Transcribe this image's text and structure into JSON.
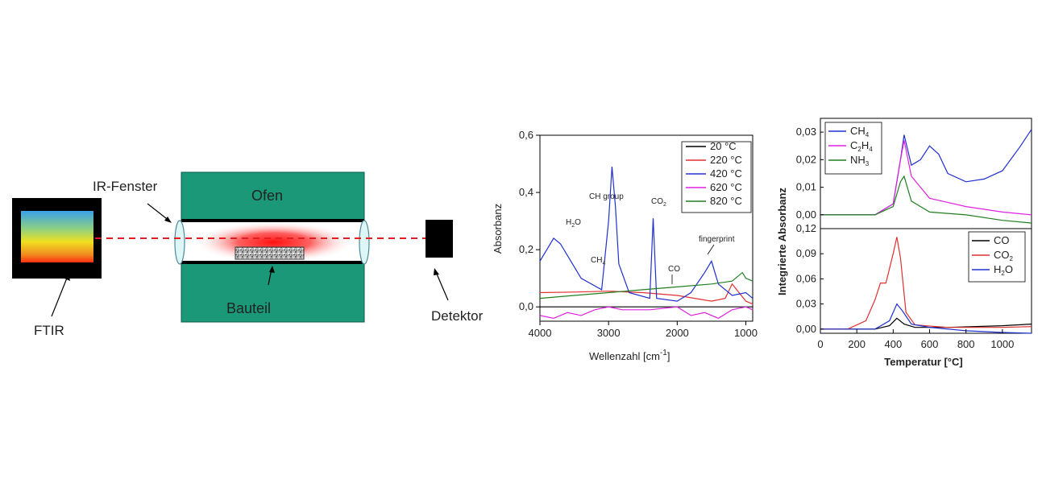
{
  "setup": {
    "ftir_label": "FTIR",
    "window_label": "IR-Fenster",
    "oven_label": "Ofen",
    "part_label": "Bauteil",
    "detector_label": "Detektor",
    "colors": {
      "oven": "#1a9878",
      "beam": "#e02020",
      "ftir_box": "#000000"
    }
  },
  "chart_data": [
    {
      "type": "line",
      "title": "",
      "xlabel": "Wellenzahl [cm",
      "xlabel_sup": "-1",
      "xlabel_end": "]",
      "ylabel": "Absorbanz",
      "xlim": [
        4000,
        900
      ],
      "ylim": [
        -0.05,
        0.6
      ],
      "x_ticks": [
        "4000",
        "3000",
        "2000",
        "1000"
      ],
      "y_ticks": [
        "0,0",
        "0,2",
        "0,4",
        "0,6"
      ],
      "legend": [
        {
          "name": "20 °C",
          "color": "#000000"
        },
        {
          "name": "220 °C",
          "color": "#e03030"
        },
        {
          "name": "420 °C",
          "color": "#2030d0"
        },
        {
          "name": "620 °C",
          "color": "#e020e0"
        },
        {
          "name": "820 °C",
          "color": "#208020"
        }
      ],
      "annotations": {
        "h2o": "H",
        "h2o_sub": "2",
        "h2o_end": "O",
        "ch4": "CH",
        "ch4_sub": "4",
        "ch_group": "CH group",
        "co2": "CO",
        "co2_sub": "2",
        "co": "CO",
        "fingerprint": "fingerprint"
      },
      "series": [
        {
          "name": "20 °C",
          "x": [
            4000,
            3000,
            2000,
            1000,
            900
          ],
          "y": [
            0.0,
            0.0,
            0.0,
            0.0,
            0.0
          ]
        },
        {
          "name": "220 °C",
          "x": [
            4000,
            3500,
            3000,
            2500,
            2000,
            1500,
            1300,
            1200,
            1000,
            900
          ],
          "y": [
            0.05,
            0.052,
            0.055,
            0.05,
            0.04,
            0.02,
            0.03,
            0.08,
            0.02,
            0.01
          ]
        },
        {
          "name": "420 °C",
          "x": [
            4000,
            3900,
            3800,
            3700,
            3600,
            3400,
            3100,
            3000,
            2950,
            2900,
            2850,
            2700,
            2400,
            2350,
            2300,
            2000,
            1800,
            1600,
            1500,
            1400,
            1200,
            1000,
            900
          ],
          "y": [
            0.16,
            0.2,
            0.24,
            0.22,
            0.18,
            0.1,
            0.06,
            0.3,
            0.49,
            0.35,
            0.15,
            0.05,
            0.03,
            0.31,
            0.03,
            0.02,
            0.05,
            0.12,
            0.16,
            0.08,
            0.04,
            0.05,
            0.03
          ]
        },
        {
          "name": "620 °C",
          "x": [
            4000,
            3800,
            3600,
            3400,
            3200,
            3000,
            2800,
            2400,
            2000,
            1800,
            1600,
            1400,
            1200,
            1000,
            900
          ],
          "y": [
            -0.03,
            -0.04,
            -0.02,
            -0.03,
            -0.01,
            0.0,
            -0.01,
            -0.01,
            0.0,
            -0.03,
            -0.02,
            -0.04,
            -0.01,
            0.0,
            -0.01
          ]
        },
        {
          "name": "820 °C",
          "x": [
            4000,
            3500,
            3000,
            2500,
            2000,
            1500,
            1200,
            1050,
            1000,
            900
          ],
          "y": [
            0.03,
            0.04,
            0.05,
            0.06,
            0.07,
            0.08,
            0.09,
            0.12,
            0.1,
            0.09
          ]
        }
      ]
    },
    {
      "type": "line",
      "title": "",
      "ylabel": "Integrierte Absorbanz",
      "xlabel": "Temperatur [°C]",
      "xlim": [
        0,
        1160
      ],
      "x_ticks": [
        "0",
        "200",
        "400",
        "600",
        "800",
        "1000"
      ],
      "panels": [
        {
          "name": "top",
          "ylim": [
            -0.005,
            0.035
          ],
          "y_ticks": [
            "0,00",
            "0,01",
            "0,02",
            "0,03"
          ],
          "legend": [
            {
              "name": "CH",
              "sub": "4",
              "end": "",
              "color": "#2030d0"
            },
            {
              "name": "C",
              "sub": "2",
              "end": "H",
              "sub2": "4",
              "color": "#e020e0"
            },
            {
              "name": "NH",
              "sub": "3",
              "end": "",
              "color": "#208020"
            }
          ],
          "series": [
            {
              "name": "CH4",
              "x": [
                0,
                300,
                400,
                440,
                460,
                500,
                550,
                600,
                650,
                700,
                800,
                900,
                1000,
                1100,
                1160
              ],
              "y": [
                0.0,
                0.0,
                0.004,
                0.02,
                0.029,
                0.018,
                0.02,
                0.025,
                0.022,
                0.015,
                0.012,
                0.013,
                0.016,
                0.025,
                0.031
              ]
            },
            {
              "name": "C2H4",
              "x": [
                0,
                300,
                400,
                440,
                460,
                500,
                600,
                800,
                1000,
                1160
              ],
              "y": [
                0.0,
                0.0,
                0.004,
                0.02,
                0.027,
                0.014,
                0.006,
                0.003,
                0.001,
                0.0
              ]
            },
            {
              "name": "NH3",
              "x": [
                0,
                300,
                400,
                440,
                460,
                500,
                600,
                800,
                1000,
                1160
              ],
              "y": [
                0.0,
                0.0,
                0.003,
                0.012,
                0.014,
                0.005,
                0.001,
                0.0,
                -0.002,
                -0.003
              ]
            }
          ]
        },
        {
          "name": "bottom",
          "ylim": [
            -0.005,
            0.12
          ],
          "y_ticks": [
            "0,00",
            "0,03",
            "0,06",
            "0,09",
            "0,12"
          ],
          "legend": [
            {
              "name": "CO",
              "sub": "",
              "end": "",
              "color": "#000000"
            },
            {
              "name": "CO",
              "sub": "2",
              "end": "",
              "color": "#e03030"
            },
            {
              "name": "H",
              "sub": "2",
              "end": "O",
              "color": "#2030d0"
            }
          ],
          "series": [
            {
              "name": "CO",
              "x": [
                0,
                300,
                380,
                420,
                460,
                520,
                700,
                1000,
                1160
              ],
              "y": [
                0.0,
                0.0,
                0.004,
                0.013,
                0.006,
                0.002,
                0.002,
                0.004,
                0.006
              ]
            },
            {
              "name": "CO2",
              "x": [
                0,
                150,
                250,
                300,
                330,
                360,
                400,
                420,
                440,
                470,
                520,
                700,
                1000,
                1160
              ],
              "y": [
                0.0,
                0.0,
                0.01,
                0.035,
                0.055,
                0.055,
                0.09,
                0.11,
                0.085,
                0.02,
                0.005,
                0.002,
                0.002,
                0.003
              ]
            },
            {
              "name": "H2O",
              "x": [
                0,
                300,
                380,
                420,
                450,
                500,
                600,
                800,
                1000,
                1160
              ],
              "y": [
                0.0,
                0.0,
                0.01,
                0.03,
                0.022,
                0.006,
                0.002,
                -0.002,
                -0.004,
                -0.005
              ]
            }
          ]
        }
      ]
    }
  ]
}
